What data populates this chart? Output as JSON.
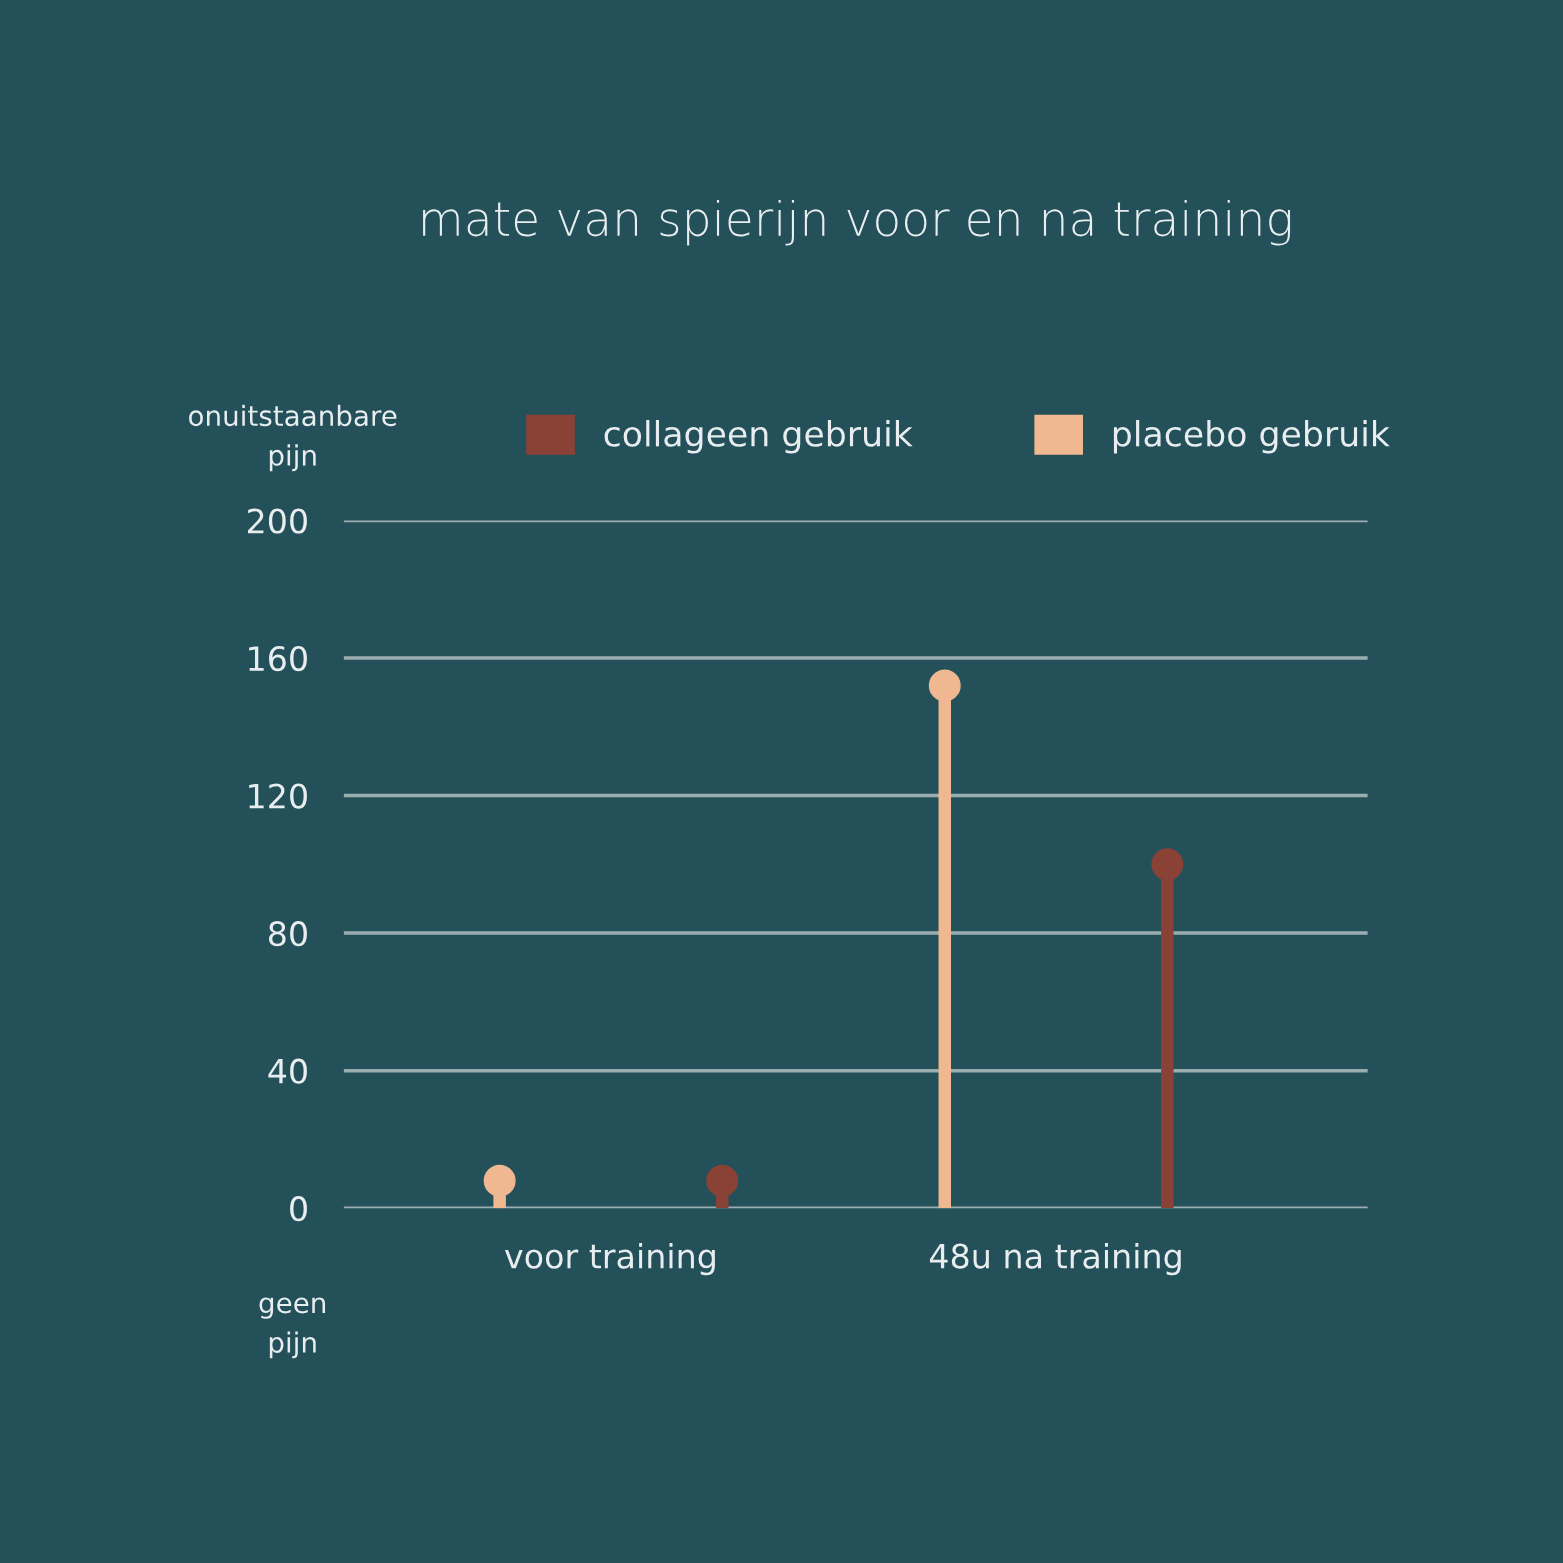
{
  "chart_data": {
    "type": "lollipop",
    "title": "mate van spierijn voor en na training",
    "categories": [
      "voor training",
      "48u na training"
    ],
    "series": [
      {
        "name": "placebo gebruik",
        "color": "#f0b891",
        "values": [
          8,
          152
        ]
      },
      {
        "name": "collageen gebruik",
        "color": "#8b4236",
        "values": [
          8,
          100
        ]
      }
    ],
    "ylim": [
      0,
      200
    ],
    "yticks": [
      0,
      40,
      80,
      120,
      160,
      200
    ],
    "grid": "y",
    "legend": "top",
    "marker": "circle",
    "annotations": [
      "onuitstaanbare\npijn",
      "geen\npijn"
    ]
  }
}
